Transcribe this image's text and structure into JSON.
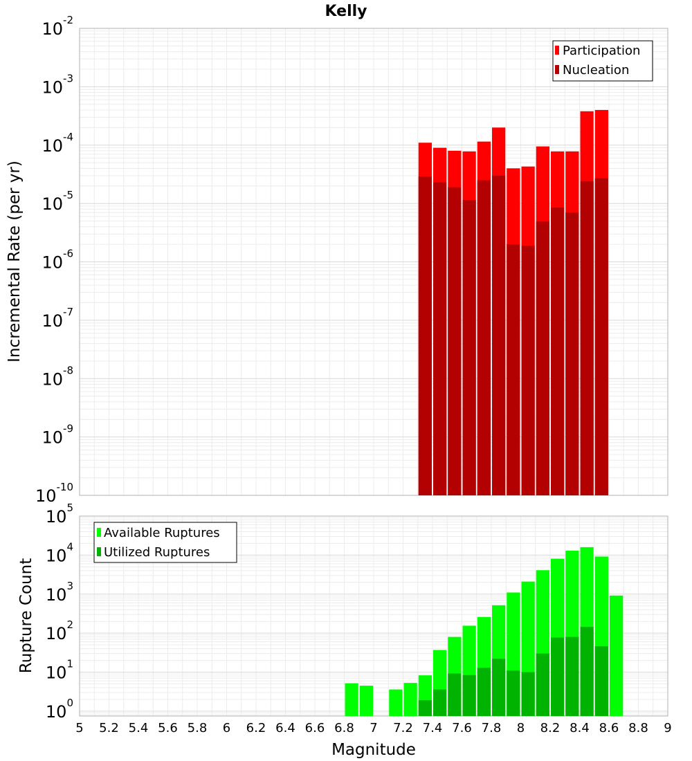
{
  "chart_data": [
    {
      "type": "bar",
      "title": "Kelly",
      "xlabel": "",
      "ylabel": "Incremental Rate (per yr)",
      "yscale": "log",
      "ylim": [
        1e-10,
        0.01
      ],
      "xlim": [
        5,
        9
      ],
      "bin_width": 0.1,
      "ytick_labels": [
        {
          "base": "10",
          "exp": "-10",
          "value": 1e-10
        },
        {
          "base": "10",
          "exp": "-9",
          "value": 1e-09
        },
        {
          "base": "10",
          "exp": "-8",
          "value": 1e-08
        },
        {
          "base": "10",
          "exp": "-7",
          "value": 1e-07
        },
        {
          "base": "10",
          "exp": "-6",
          "value": 1e-06
        },
        {
          "base": "10",
          "exp": "-5",
          "value": 1e-05
        },
        {
          "base": "10",
          "exp": "-4",
          "value": 0.0001
        },
        {
          "base": "10",
          "exp": "-3",
          "value": 0.001
        },
        {
          "base": "10",
          "exp": "-2",
          "value": 0.01
        }
      ],
      "legend": {
        "position": "top-right",
        "entries": [
          "Participation",
          "Nucleation"
        ]
      },
      "series": [
        {
          "name": "Participation",
          "color": "#ff0000",
          "x": [
            7.35,
            7.45,
            7.55,
            7.65,
            7.75,
            7.85,
            7.95,
            8.05,
            8.15,
            8.25,
            8.35,
            8.45,
            8.55
          ],
          "values": [
            0.00011,
            9e-05,
            8e-05,
            7.8e-05,
            0.000115,
            0.0002,
            4e-05,
            4.3e-05,
            9.5e-05,
            7.8e-05,
            7.8e-05,
            0.00038,
            0.0004
          ]
        },
        {
          "name": "Nucleation",
          "color": "#b30000",
          "x": [
            7.35,
            7.45,
            7.55,
            7.65,
            7.75,
            7.85,
            7.95,
            8.05,
            8.15,
            8.25,
            8.35,
            8.45,
            8.55
          ],
          "values": [
            2.9e-05,
            2.3e-05,
            1.9e-05,
            1.15e-05,
            2.5e-05,
            3e-05,
            2e-06,
            1.9e-06,
            4.9e-06,
            8.5e-06,
            7e-06,
            2.4e-05,
            2.7e-05
          ]
        }
      ]
    },
    {
      "type": "bar",
      "title": "",
      "xlabel": "Magnitude",
      "ylabel": "Rupture Count",
      "yscale": "log",
      "ylim": [
        0.75,
        100000
      ],
      "xlim": [
        5,
        9
      ],
      "bin_width": 0.1,
      "ytick_labels": [
        {
          "base": "10",
          "exp": "0",
          "value": 1
        },
        {
          "base": "10",
          "exp": "1",
          "value": 10
        },
        {
          "base": "10",
          "exp": "2",
          "value": 100
        },
        {
          "base": "10",
          "exp": "3",
          "value": 1000
        },
        {
          "base": "10",
          "exp": "4",
          "value": 10000
        },
        {
          "base": "10",
          "exp": "5",
          "value": 100000
        }
      ],
      "xtick_labels": [
        "5",
        "5.2",
        "5.4",
        "5.6",
        "5.8",
        "6",
        "6.2",
        "6.4",
        "6.6",
        "6.8",
        "7",
        "7.2",
        "7.4",
        "7.6",
        "7.8",
        "8",
        "8.2",
        "8.4",
        "8.6",
        "8.8",
        "9"
      ],
      "legend": {
        "position": "top-left",
        "entries": [
          "Available Ruptures",
          "Utilized Ruptures"
        ]
      },
      "series": [
        {
          "name": "Available Ruptures",
          "color": "#00ff00",
          "x": [
            6.85,
            6.95,
            7.15,
            7.25,
            7.35,
            7.45,
            7.55,
            7.65,
            7.75,
            7.85,
            7.95,
            8.05,
            8.15,
            8.25,
            8.35,
            8.45,
            8.55,
            8.65
          ],
          "values": [
            5.2,
            4.5,
            3.6,
            5.3,
            8.3,
            37,
            80,
            155,
            260,
            520,
            1100,
            2100,
            4100,
            8100,
            13000,
            16000,
            9200,
            920
          ]
        },
        {
          "name": "Utilized Ruptures",
          "color": "#00b300",
          "x": [
            7.35,
            7.45,
            7.55,
            7.65,
            7.75,
            7.85,
            7.95,
            8.05,
            8.15,
            8.25,
            8.35,
            8.45,
            8.55
          ],
          "values": [
            1.9,
            3.6,
            9.2,
            8.4,
            13,
            22,
            11,
            10,
            30,
            77,
            80,
            145,
            46
          ]
        }
      ]
    }
  ]
}
